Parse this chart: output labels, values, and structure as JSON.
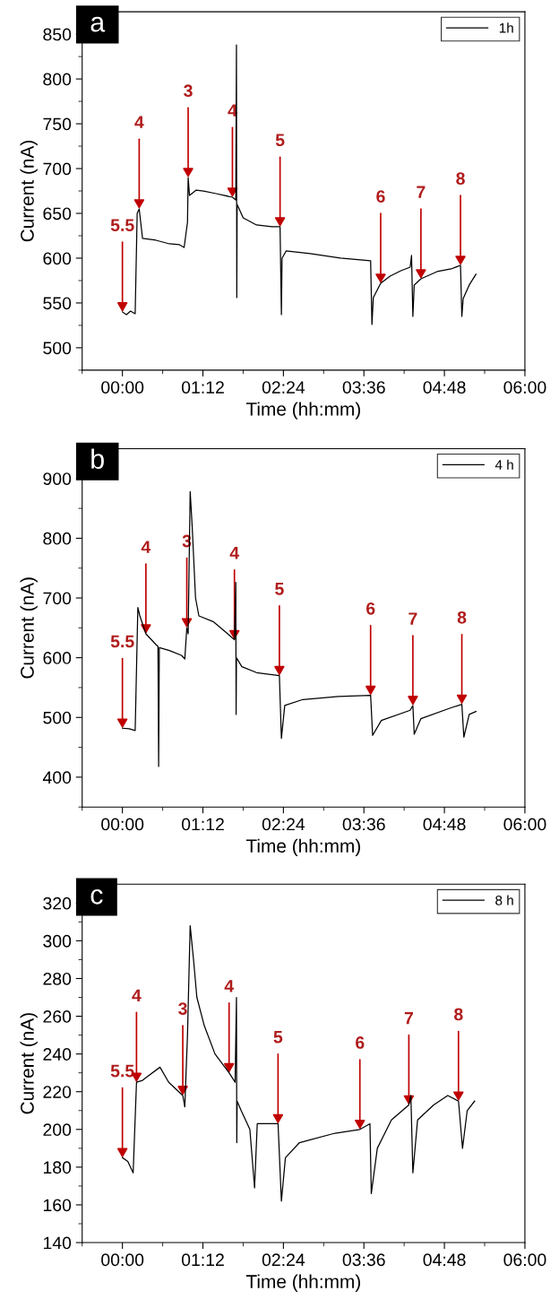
{
  "chart_data": [
    {
      "type": "line",
      "xlabel": "Time (hh:mm)",
      "ylabel": "Current (nA)",
      "legend": "top right",
      "xlim": [
        -0.6,
        6.0
      ],
      "ylim": [
        475,
        875
      ],
      "xticks": [
        {
          "value": 0,
          "label": "00:00"
        },
        {
          "value": 1.2,
          "label": "01:12"
        },
        {
          "value": 2.4,
          "label": "02:24"
        },
        {
          "value": 3.6,
          "label": "03:36"
        },
        {
          "value": 4.8,
          "label": "04:48"
        },
        {
          "value": 6.0,
          "label": "06:00"
        }
      ],
      "yticks": [
        500,
        550,
        600,
        650,
        700,
        750,
        800,
        850
      ],
      "series": [
        {
          "name": "1h",
          "color": "#000000",
          "x": [
            0.0,
            0.06,
            0.12,
            0.19,
            0.22,
            0.25,
            0.3,
            0.5,
            0.7,
            0.85,
            0.92,
            0.97,
            0.98,
            1.0,
            1.1,
            1.21,
            1.4,
            1.64,
            1.69,
            1.7,
            1.705,
            1.71,
            1.8,
            2.0,
            2.23,
            2.35,
            2.37,
            2.38,
            2.44,
            2.8,
            3.25,
            3.55,
            3.7,
            3.72,
            3.74,
            3.85,
            3.99,
            4.15,
            4.29,
            4.31,
            4.33,
            4.35,
            4.45,
            4.69,
            4.9,
            5.04,
            5.06,
            5.08,
            5.17,
            5.27
          ],
          "values": [
            540,
            537,
            541,
            538,
            650,
            655,
            622,
            620,
            616,
            615,
            612,
            640,
            690,
            670,
            676,
            675,
            672,
            668,
            665,
            838,
            556,
            660,
            645,
            637,
            635,
            635,
            537,
            600,
            608,
            605,
            600,
            598,
            597,
            526,
            556,
            572,
            580,
            586,
            590,
            603,
            535,
            570,
            577,
            585,
            588,
            592,
            535,
            555,
            570,
            582
          ]
        }
      ],
      "annotations": [
        "a",
        {
          "text": "5.5",
          "x": 0.0,
          "y": 540
        },
        {
          "text": "4",
          "x": 0.25,
          "y": 655
        },
        {
          "text": "3",
          "x": 0.98,
          "y": 690
        },
        {
          "text": "4",
          "x": 1.64,
          "y": 668
        },
        {
          "text": "5",
          "x": 2.35,
          "y": 635
        },
        {
          "text": "6",
          "x": 3.85,
          "y": 572
        },
        {
          "text": "7",
          "x": 4.45,
          "y": 577
        },
        {
          "text": "8",
          "x": 5.04,
          "y": 592
        }
      ]
    },
    {
      "type": "line",
      "xlabel": "Time (hh:mm)",
      "ylabel": "Current (nA)",
      "legend": "top right",
      "xlim": [
        -0.6,
        6.0
      ],
      "ylim": [
        350,
        950
      ],
      "xticks": [
        {
          "value": 0,
          "label": "00:00"
        },
        {
          "value": 1.2,
          "label": "01:12"
        },
        {
          "value": 2.4,
          "label": "02:24"
        },
        {
          "value": 3.6,
          "label": "03:36"
        },
        {
          "value": 4.8,
          "label": "04:48"
        },
        {
          "value": 6.0,
          "label": "06:00"
        }
      ],
      "yticks": [
        400,
        500,
        600,
        700,
        800,
        900
      ],
      "series": [
        {
          "name": "4 h",
          "color": "#000000",
          "x": [
            0.0,
            0.1,
            0.19,
            0.23,
            0.26,
            0.35,
            0.5,
            0.53,
            0.54,
            0.55,
            0.7,
            0.88,
            0.93,
            0.96,
            0.98,
            1.01,
            1.04,
            1.09,
            1.14,
            1.36,
            1.57,
            1.67,
            1.69,
            1.695,
            1.7,
            1.78,
            2.0,
            2.34,
            2.37,
            2.42,
            2.69,
            3.22,
            3.7,
            3.73,
            3.86,
            4.29,
            4.33,
            4.35,
            4.45,
            4.87,
            5.06,
            5.09,
            5.17,
            5.27
          ],
          "values": [
            482,
            481,
            478,
            684,
            670,
            640,
            622,
            619,
            418,
            617,
            612,
            604,
            598,
            650,
            640,
            878,
            820,
            700,
            670,
            660,
            640,
            630,
            726,
            505,
            600,
            585,
            575,
            570,
            465,
            520,
            530,
            535,
            537,
            470,
            495,
            512,
            520,
            472,
            498,
            515,
            522,
            467,
            505,
            510
          ]
        }
      ],
      "annotations": [
        "b",
        {
          "text": "5.5",
          "x": 0.0,
          "y": 482
        },
        {
          "text": "4",
          "x": 0.35,
          "y": 640
        },
        {
          "text": "3",
          "x": 0.96,
          "y": 650
        },
        {
          "text": "4",
          "x": 1.67,
          "y": 630
        },
        {
          "text": "5",
          "x": 2.34,
          "y": 570
        },
        {
          "text": "6",
          "x": 3.7,
          "y": 537
        },
        {
          "text": "7",
          "x": 4.33,
          "y": 520
        },
        {
          "text": "8",
          "x": 5.06,
          "y": 522
        }
      ]
    },
    {
      "type": "line",
      "xlabel": "Time (hh:mm)",
      "ylabel": "Current (nA)",
      "legend": "top right",
      "xlim": [
        -0.6,
        6.0
      ],
      "ylim": [
        140,
        330
      ],
      "xticks": [
        {
          "value": 0,
          "label": "00:00"
        },
        {
          "value": 1.2,
          "label": "01:12"
        },
        {
          "value": 2.4,
          "label": "02:24"
        },
        {
          "value": 3.6,
          "label": "03:36"
        },
        {
          "value": 4.8,
          "label": "04:48"
        },
        {
          "value": 6.0,
          "label": "06:00"
        }
      ],
      "yticks": [
        140,
        160,
        180,
        200,
        220,
        240,
        260,
        280,
        300,
        320
      ],
      "series": [
        {
          "name": "8 h",
          "color": "#000000",
          "x": [
            0.0,
            0.08,
            0.16,
            0.21,
            0.3,
            0.37,
            0.56,
            0.69,
            0.9,
            0.93,
            0.97,
            1.01,
            1.06,
            1.11,
            1.22,
            1.38,
            1.59,
            1.68,
            1.7,
            1.705,
            1.71,
            1.77,
            1.9,
            1.97,
            2.01,
            2.32,
            2.37,
            2.43,
            2.64,
            3.17,
            3.54,
            3.69,
            3.71,
            3.8,
            4.01,
            4.27,
            4.3,
            4.33,
            4.4,
            4.64,
            4.85,
            5.01,
            5.07,
            5.14,
            5.25
          ],
          "values": [
            185,
            183,
            177,
            225,
            226,
            228,
            233,
            225,
            218,
            212,
            250,
            308,
            290,
            270,
            255,
            240,
            230,
            225,
            270,
            193,
            215,
            210,
            200,
            169,
            203,
            203,
            162,
            185,
            193,
            198,
            200,
            203,
            166,
            190,
            205,
            213,
            218,
            177,
            205,
            213,
            218,
            215,
            190,
            210,
            215
          ]
        }
      ],
      "annotations": [
        "c",
        {
          "text": "5.5",
          "x": 0.0,
          "y": 185
        },
        {
          "text": "4",
          "x": 0.21,
          "y": 225
        },
        {
          "text": "3",
          "x": 0.9,
          "y": 218
        },
        {
          "text": "4",
          "x": 1.59,
          "y": 230
        },
        {
          "text": "5",
          "x": 2.32,
          "y": 203
        },
        {
          "text": "6",
          "x": 3.54,
          "y": 200
        },
        {
          "text": "7",
          "x": 4.27,
          "y": 213
        },
        {
          "text": "8",
          "x": 5.01,
          "y": 215
        }
      ]
    }
  ]
}
